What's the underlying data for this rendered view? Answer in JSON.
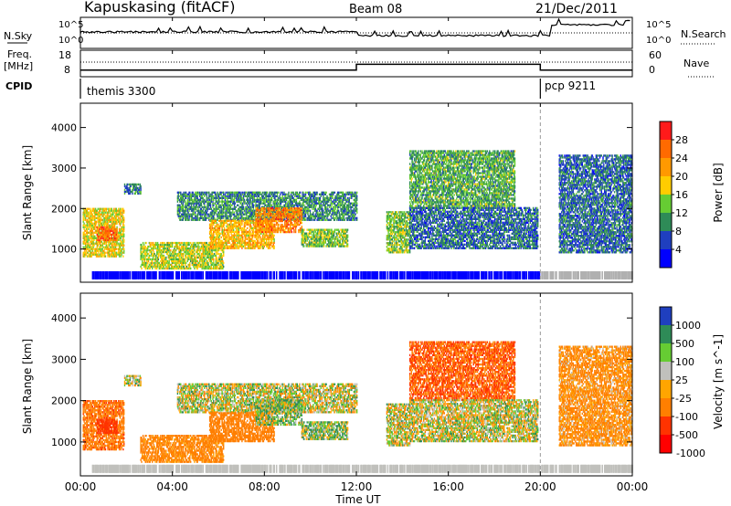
{
  "header": {
    "station": "Kapuskasing (fitACF)",
    "beam": "Beam 08",
    "date": "21/Dec/2011"
  },
  "noise_panel": {
    "left_label": "N.Sky",
    "right_label": "N.Search",
    "tick_top": "10^5",
    "tick_bottom": "10^0"
  },
  "freq_panel": {
    "left_label_1": "Freq.",
    "left_label_2": "[MHz]",
    "right_label": "Nave",
    "left_ticks": [
      "18",
      "8"
    ],
    "right_ticks": [
      "60",
      "0"
    ]
  },
  "cpid_panel": {
    "label": "CPID",
    "modes": [
      {
        "name": "themis 3300",
        "start_hour": 0
      },
      {
        "name": "pcp 9211",
        "start_hour": 20
      }
    ]
  },
  "power_panel": {
    "ylabel": "Slant Range [km]",
    "cbar_label": "Power [dB]",
    "cbar_ticks": [
      "28",
      "24",
      "20",
      "16",
      "12",
      "8",
      "4"
    ],
    "colors": [
      "#ff1a1a",
      "#ff6a00",
      "#ff9900",
      "#ffcc00",
      "#66cc33",
      "#2e8b57",
      "#1f3fbf",
      "#0000ff"
    ]
  },
  "velocity_panel": {
    "ylabel": "Slant Range [km]",
    "cbar_label": "Velocity [m s^-1]",
    "cbar_ticks": [
      "1000",
      "500",
      "100",
      "25",
      "-25",
      "-100",
      "-500",
      "-1000"
    ],
    "colors": [
      "#1f3fbf",
      "#2e8b57",
      "#66cc33",
      "#c0c0bc",
      "#ffa500",
      "#ff7f00",
      "#ff3300",
      "#ff0000"
    ]
  },
  "xaxis": {
    "label": "Time UT",
    "ticks": [
      "00:00",
      "04:00",
      "08:00",
      "12:00",
      "16:00",
      "20:00",
      "00:00"
    ]
  },
  "chart_data": {
    "type": "heatmap",
    "title": "Kapuskasing (fitACF) Beam 08 21/Dec/2011",
    "xlabel": "Time UT",
    "ylabel": "Slant Range [km]",
    "xlim_hours": [
      0,
      24
    ],
    "ylim_km": [
      180,
      4600
    ],
    "y_ticks": [
      1000,
      2000,
      3000,
      4000
    ],
    "frequency_mhz": [
      {
        "start_hour": 0,
        "end_hour": 12,
        "value": 10
      },
      {
        "start_hour": 12,
        "end_hour": 20,
        "value": 14
      },
      {
        "start_hour": 20,
        "end_hour": 24,
        "value": 10
      }
    ],
    "power_scale_db": [
      4,
      8,
      12,
      16,
      20,
      24,
      28
    ],
    "velocity_scale_ms": [
      -1000,
      -500,
      -100,
      -25,
      25,
      100,
      500,
      1000
    ],
    "echo_regions": [
      {
        "t0": 0.1,
        "t1": 1.9,
        "r0": 800,
        "r1": 2000,
        "power": 18,
        "velocity": -400
      },
      {
        "t0": 0.7,
        "t1": 1.6,
        "r0": 1200,
        "r1": 1550,
        "power": 26,
        "velocity": -800
      },
      {
        "t0": 1.9,
        "t1": 2.6,
        "r0": 2350,
        "r1": 2600,
        "power": 9,
        "velocity": 0
      },
      {
        "t0": 2.6,
        "t1": 6.2,
        "r0": 500,
        "r1": 1150,
        "power": 16,
        "velocity": -200
      },
      {
        "t0": 4.2,
        "t1": 12.0,
        "r0": 1700,
        "r1": 2400,
        "power": 10,
        "velocity": 0
      },
      {
        "t0": 5.6,
        "t1": 8.4,
        "r0": 1000,
        "r1": 1700,
        "power": 20,
        "velocity": -300
      },
      {
        "t0": 7.6,
        "t1": 9.6,
        "r0": 1400,
        "r1": 2000,
        "power": 24,
        "velocity": 60
      },
      {
        "t0": 9.6,
        "t1": 11.6,
        "r0": 1050,
        "r1": 1500,
        "power": 14,
        "velocity": 50
      },
      {
        "t0": 13.3,
        "t1": 14.3,
        "r0": 900,
        "r1": 1900,
        "power": 14,
        "velocity": 0
      },
      {
        "t0": 14.3,
        "t1": 18.9,
        "r0": 2000,
        "r1": 3400,
        "power": 12,
        "velocity": -500
      },
      {
        "t0": 14.3,
        "t1": 19.9,
        "r0": 1000,
        "r1": 2000,
        "power": 8,
        "velocity": 0
      },
      {
        "t0": 20.8,
        "t1": 24.0,
        "r0": 900,
        "r1": 3300,
        "power": 8,
        "velocity": -150
      }
    ]
  }
}
